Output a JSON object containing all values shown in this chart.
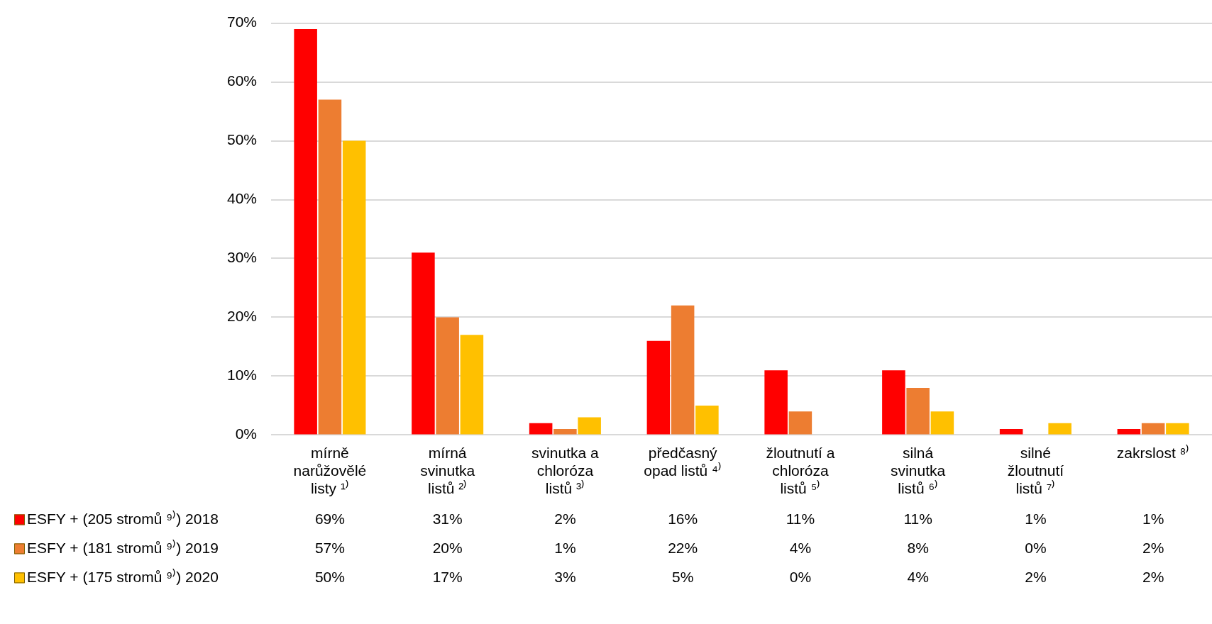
{
  "chart_data": {
    "type": "bar",
    "categories": [
      "mírně narůžovělé listy ¹⁾",
      "mírná svinutka listů ²⁾",
      "svinutka a chloróza listů ³⁾",
      "předčasný opad listů ⁴⁾",
      "žloutnutí a chloróza listů ⁵⁾",
      "silná svinutka listů ⁶⁾",
      "silné žloutnutí listů ⁷⁾",
      "zakrslost ⁸⁾"
    ],
    "series": [
      {
        "name": "ESFY + (205 stromů ⁹⁾) 2018",
        "color": "#ff0000",
        "values": [
          69,
          31,
          2,
          16,
          11,
          11,
          1,
          1
        ],
        "value_labels": [
          "69%",
          "31%",
          "2%",
          "16%",
          "11%",
          "11%",
          "1%",
          "1%"
        ]
      },
      {
        "name": "ESFY + (181 stromů ⁹⁾) 2019",
        "color": "#ed7d31",
        "values": [
          57,
          20,
          1,
          22,
          4,
          8,
          0,
          2
        ],
        "value_labels": [
          "57%",
          "20%",
          "1%",
          "22%",
          "4%",
          "8%",
          "0%",
          "2%"
        ]
      },
      {
        "name": "ESFY + (175 stromů ⁹⁾) 2020",
        "color": "#ffc000",
        "values": [
          50,
          17,
          3,
          5,
          0,
          4,
          2,
          2
        ],
        "value_labels": [
          "50%",
          "17%",
          "3%",
          "5%",
          "0%",
          "4%",
          "2%",
          "2%"
        ]
      }
    ],
    "ylim": [
      0,
      70
    ],
    "yticks": [
      {
        "value": 0,
        "label": "0%"
      },
      {
        "value": 10,
        "label": "10%"
      },
      {
        "value": 20,
        "label": "20%"
      },
      {
        "value": 30,
        "label": "30%"
      },
      {
        "value": 40,
        "label": "40%"
      },
      {
        "value": 50,
        "label": "50%"
      },
      {
        "value": 60,
        "label": "60%"
      },
      {
        "value": 70,
        "label": "70%"
      }
    ],
    "grid": "y",
    "legend": "bottom"
  }
}
